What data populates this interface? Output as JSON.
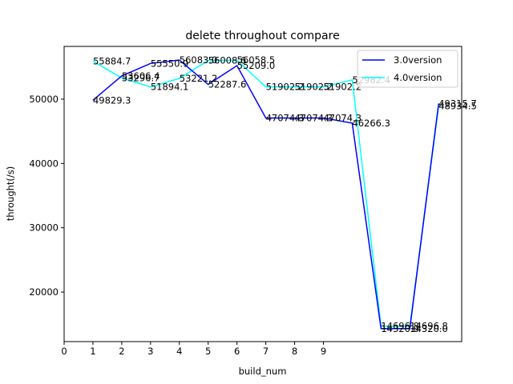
{
  "chart_data": {
    "type": "line",
    "title": "delete throughout compare",
    "xlabel": "build_num",
    "ylabel": "throught(/s)",
    "x": [
      1,
      2,
      3,
      4,
      5,
      6,
      7,
      8,
      9,
      10,
      11,
      12,
      13
    ],
    "xticks": [
      0,
      1,
      2,
      3,
      4,
      5,
      6,
      7,
      8,
      9
    ],
    "xlim": [
      0,
      13.8
    ],
    "yticks": [
      20000,
      30000,
      40000,
      50000
    ],
    "ylim": [
      12300,
      58200
    ],
    "grid": false,
    "legend_position": "top-right",
    "series": [
      {
        "name": "3.0version",
        "color": "#0000ff",
        "values": [
          49829.3,
          53606.4,
          55550.9,
          56083.0,
          52287.6,
          55209.0,
          47074.3,
          47074.3,
          47074.3,
          46266.3,
          14320.0,
          14320.0,
          49315.7
        ],
        "labels": [
          "49829.3",
          "53606.4",
          "55550.9",
          "56083.0",
          "52287.6",
          "55209.0",
          "47074.3",
          "47074.3",
          "47074.3",
          "46266.3",
          "14320.0",
          "14320.0",
          "49315.7"
        ]
      },
      {
        "name": "4.0version",
        "color": "#00ffff",
        "values": [
          55884.7,
          53296.7,
          51894.1,
          53221.2,
          56008.6,
          56058.5,
          51902.2,
          51902.2,
          51902.2,
          52982.4,
          14696.8,
          14696.8,
          48934.5
        ],
        "labels": [
          "55884.7",
          "53296.7",
          "51894.1",
          "53221.2",
          "56008.6",
          "56058.5",
          "51902.2",
          "51902.2",
          "51902.2",
          "52982.4",
          "14696.8",
          "14696.8",
          "48934.5"
        ]
      }
    ]
  }
}
